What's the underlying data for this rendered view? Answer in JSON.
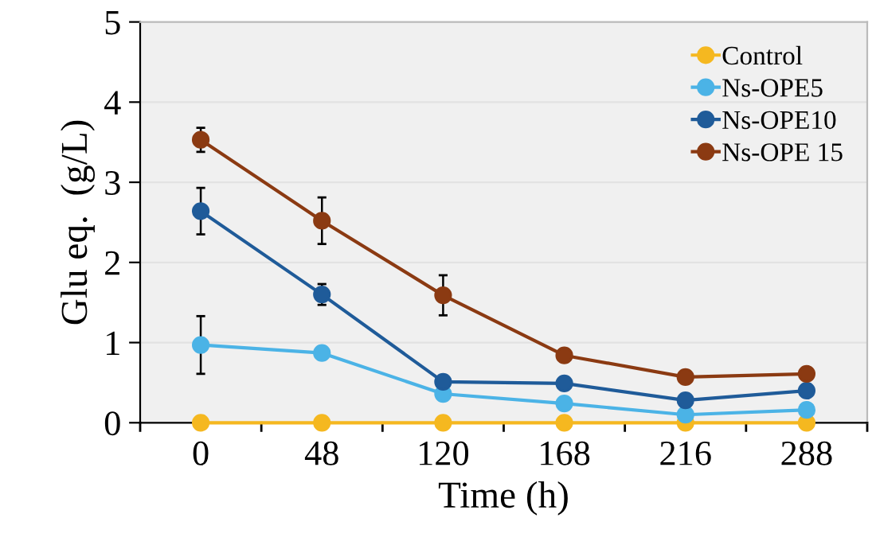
{
  "chart_data": {
    "type": "line",
    "xlabel": "Time (h)",
    "ylabel": "Glu eq.  (g/L)",
    "categories": [
      "0",
      "48",
      "120",
      "168",
      "216",
      "288"
    ],
    "ylim": [
      0,
      5
    ],
    "yticks": [
      0,
      1,
      2,
      3,
      4,
      5
    ],
    "grid": "y",
    "legend": "top right",
    "marker": "circle",
    "line_style": "solid",
    "series": [
      {
        "name": "Control",
        "color": "#f5b820",
        "values": [
          0,
          0,
          0,
          0,
          0,
          0
        ]
      },
      {
        "name": "Ns-OPE5",
        "color": "#4bb3e6",
        "values": [
          0.97,
          0.87,
          0.36,
          0.24,
          0.1,
          0.16
        ],
        "errors": [
          0.36,
          null,
          null,
          null,
          null,
          null
        ]
      },
      {
        "name": "Ns-OPE10",
        "color": "#1f5b99",
        "values": [
          2.64,
          1.6,
          0.51,
          0.49,
          0.28,
          0.4
        ],
        "errors": [
          0.29,
          0.13,
          null,
          null,
          null,
          null
        ]
      },
      {
        "name": "Ns-OPE 15",
        "color": "#8b3a12",
        "values": [
          3.53,
          2.52,
          1.59,
          0.84,
          0.57,
          0.61
        ],
        "errors": [
          0.15,
          0.29,
          0.25,
          null,
          null,
          null
        ]
      }
    ]
  }
}
